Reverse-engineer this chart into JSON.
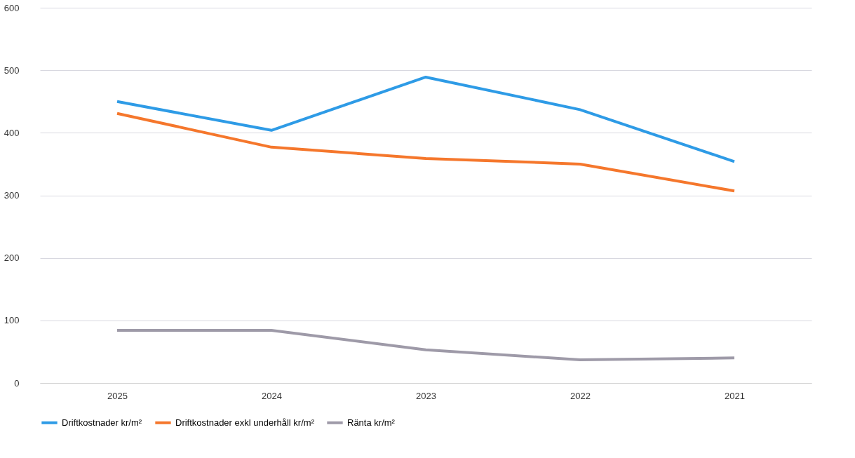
{
  "chart_data": {
    "type": "line",
    "categories": [
      "2025",
      "2024",
      "2023",
      "2022",
      "2021"
    ],
    "series": [
      {
        "name": "Driftkostnader kr/m²",
        "color": "#2e9be6",
        "values": [
          450,
          404,
          489,
          437,
          354
        ]
      },
      {
        "name": "Driftkostnader exkl underhåll kr/m²",
        "color": "#f5772c",
        "values": [
          431,
          377,
          359,
          350,
          307
        ]
      },
      {
        "name": "Ränta kr/m²",
        "color": "#9e9aa8",
        "values": [
          84,
          84,
          53,
          37,
          40
        ]
      }
    ],
    "ylim": [
      0,
      600
    ],
    "yticks": [
      0,
      100,
      200,
      300,
      400,
      500,
      600
    ],
    "grid": "y",
    "legend": "bottom",
    "marker": "none",
    "line_style": "solid"
  }
}
